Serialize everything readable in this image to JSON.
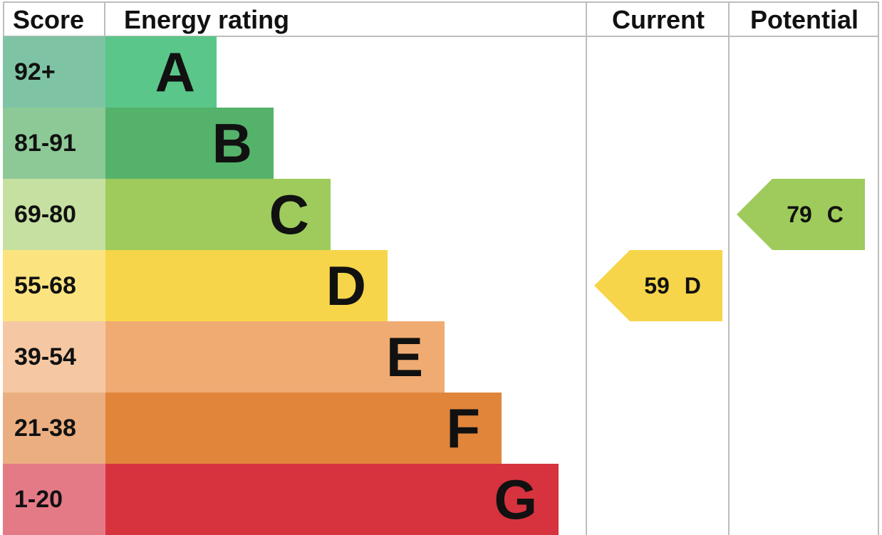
{
  "chart_data": {
    "type": "table",
    "headers": {
      "score": "Score",
      "rating": "Energy rating",
      "current": "Current",
      "potential": "Potential"
    },
    "bands": [
      {
        "letter": "A",
        "range": "92+",
        "color": "#5ac68a",
        "score_bg": "#7ec3a4"
      },
      {
        "letter": "B",
        "range": "81-91",
        "color": "#55b26a",
        "score_bg": "#8dc997"
      },
      {
        "letter": "C",
        "range": "69-80",
        "color": "#9ecb5b",
        "score_bg": "#c5e0a0"
      },
      {
        "letter": "D",
        "range": "55-68",
        "color": "#f6d54a",
        "score_bg": "#fbe47f"
      },
      {
        "letter": "E",
        "range": "39-54",
        "color": "#f0ab72",
        "score_bg": "#f5c8a3"
      },
      {
        "letter": "F",
        "range": "21-38",
        "color": "#e1853b",
        "score_bg": "#ebae80"
      },
      {
        "letter": "G",
        "range": "1-20",
        "color": "#d6333e",
        "score_bg": "#e57a87"
      }
    ],
    "current": {
      "value": 59,
      "band": "D",
      "label": "59 D",
      "color": "#f6d54a"
    },
    "potential": {
      "value": 79,
      "band": "C",
      "label": "79 C",
      "color": "#9ecb5b"
    }
  }
}
